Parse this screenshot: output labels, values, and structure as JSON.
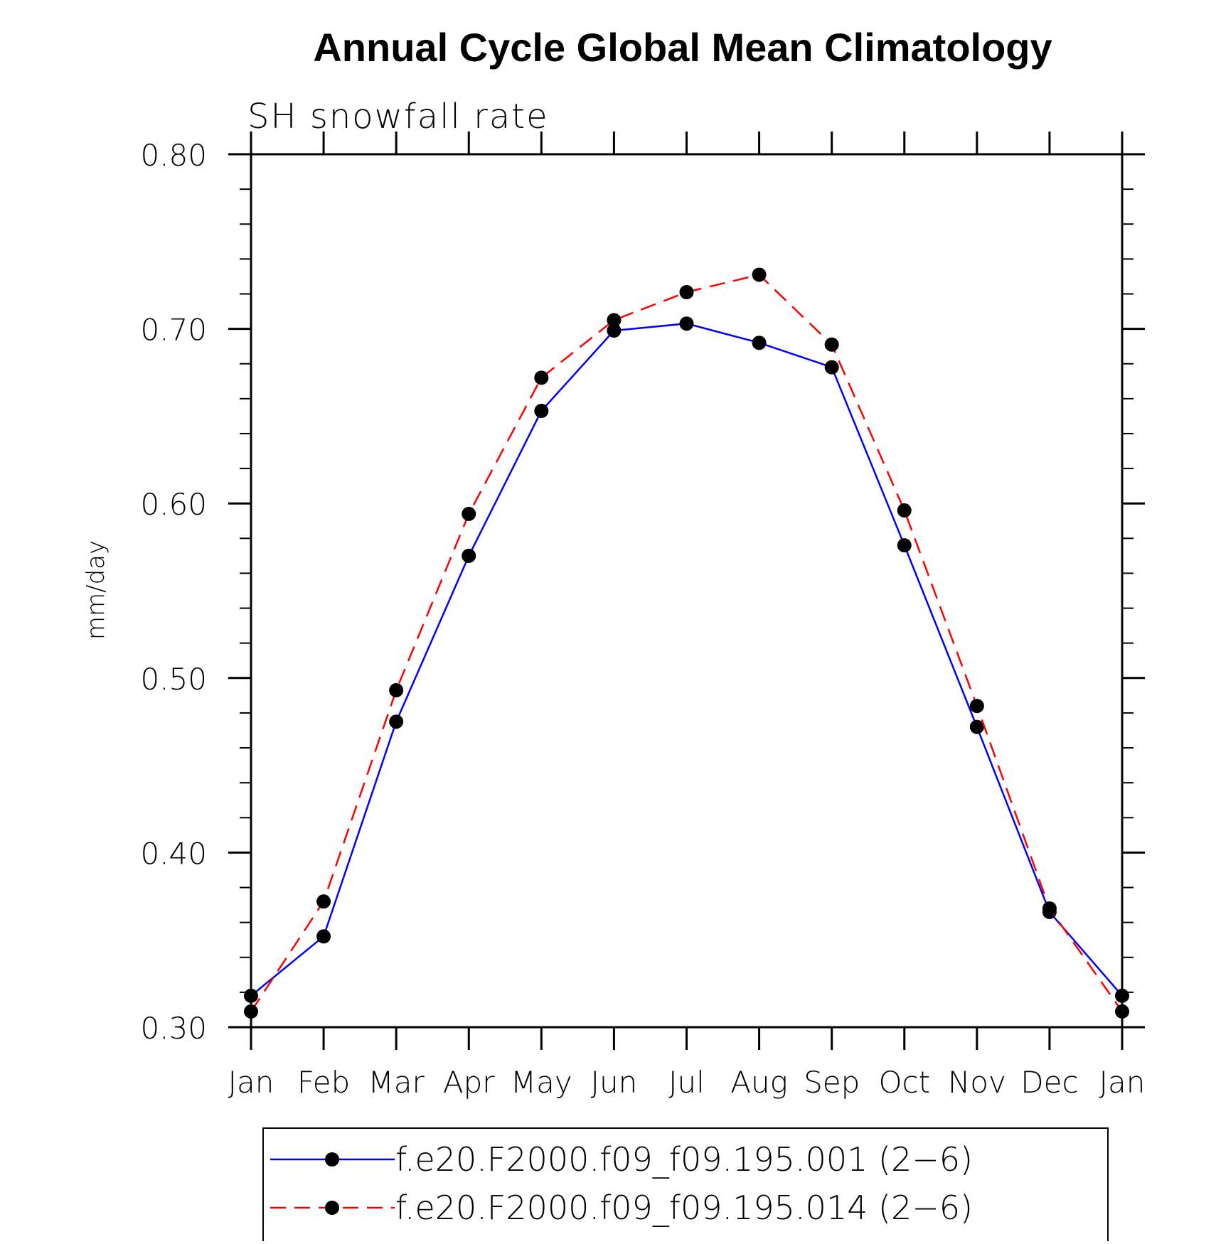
{
  "chart_data": {
    "type": "line",
    "title": "Annual Cycle Global Mean Climatology",
    "subtitle": "SH snowfall rate",
    "xlabel": "",
    "ylabel": "mm/day",
    "categories": [
      "Jan",
      "Feb",
      "Mar",
      "Apr",
      "May",
      "Jun",
      "Jul",
      "Aug",
      "Sep",
      "Oct",
      "Nov",
      "Dec",
      "Jan"
    ],
    "ylim": [
      0.3,
      0.8
    ],
    "yticks": [
      "0.30",
      "0.40",
      "0.50",
      "0.60",
      "0.70",
      "0.80"
    ],
    "y_minor_step": 0.02,
    "grid": false,
    "legend_position": "bottom",
    "series": [
      {
        "name": "f.e20.F2000.f09_f09.195.001 (2−6)",
        "color": "#0000ff",
        "line_style": "solid",
        "marker": "filled-circle",
        "values": [
          0.318,
          0.352,
          0.475,
          0.57,
          0.653,
          0.699,
          0.703,
          0.692,
          0.678,
          0.576,
          0.472,
          0.366,
          0.318
        ]
      },
      {
        "name": "f.e20.F2000.f09_f09.195.014 (2−6)",
        "color": "#ff0000",
        "line_style": "dashed",
        "marker": "filled-circle",
        "values": [
          0.309,
          0.372,
          0.493,
          0.594,
          0.672,
          0.705,
          0.721,
          0.731,
          0.691,
          0.596,
          0.484,
          0.368,
          0.309
        ]
      }
    ]
  }
}
